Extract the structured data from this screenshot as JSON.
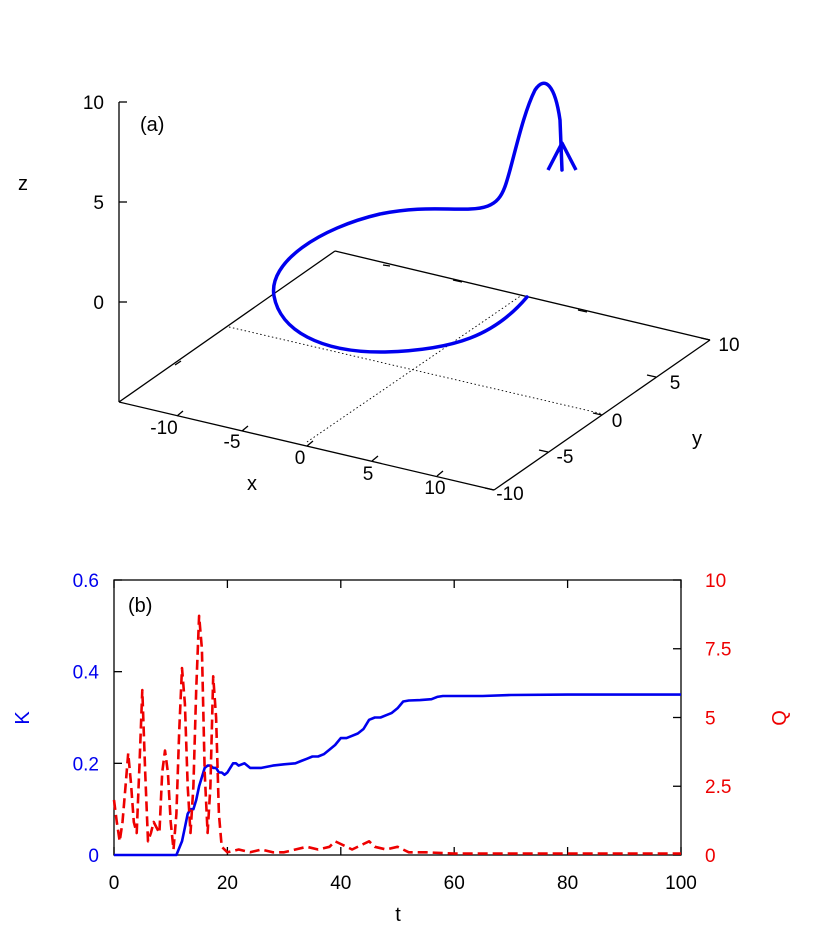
{
  "chart_data": [
    {
      "type": "line",
      "panel_label": "(a)",
      "projection": "3d",
      "xlabel": "x",
      "ylabel": "y",
      "zlabel": "z",
      "x_ticks": [
        "-10",
        "-5",
        "0",
        "5",
        "10"
      ],
      "y_ticks": [
        "-10",
        "-5",
        "0",
        "5",
        "10"
      ],
      "z_ticks": [
        "0",
        "5",
        "10"
      ],
      "xlim": [
        -13,
        13
      ],
      "ylim": [
        -10,
        10
      ],
      "zlim": [
        -5,
        10
      ],
      "grid": false,
      "trajectory_color": "#0000ee",
      "trajectory": {
        "x": [
          11.5,
          10,
          7,
          3,
          -2,
          -7,
          -10,
          -11.2,
          -10,
          -6,
          -1.5,
          2,
          4,
          6,
          7.5,
          9.5,
          10.7,
          10.2,
          10.0
        ],
        "y": [
          -10,
          -6,
          -2,
          2,
          5,
          7,
          6.5,
          3.5,
          -0.5,
          -4,
          -5.5,
          -5,
          -4,
          -3.5,
          -3.2,
          -3.2,
          -3.8,
          -5,
          -6
        ],
        "z": [
          0,
          0.2,
          0.8,
          1.8,
          3.0,
          4.2,
          4.8,
          4.6,
          4.0,
          4.0,
          4.3,
          4.6,
          5.0,
          5.4,
          6.0,
          8.0,
          9.8,
          10.8,
          8.0
        ]
      },
      "direction_arrow": "upward near the end of the trajectory"
    },
    {
      "type": "line",
      "panel_label": "(b)",
      "xlabel": "t",
      "ylabel": "K",
      "y2label": "Q",
      "xlim": [
        0,
        100
      ],
      "ylim": [
        0,
        0.6
      ],
      "y2lim": [
        0,
        10
      ],
      "x_ticks": [
        "0",
        "20",
        "40",
        "60",
        "80",
        "100"
      ],
      "y_ticks": [
        "0",
        "0.2",
        "0.4",
        "0.6"
      ],
      "y2_ticks": [
        "0",
        "2.5",
        "5",
        "7.5",
        "10"
      ],
      "grid": false,
      "series": [
        {
          "axis": "left",
          "color": "#0000ee",
          "style": "solid",
          "x": [
            0,
            5,
            10,
            11,
            12,
            12.5,
            13,
            13.5,
            14,
            14.5,
            15,
            15.5,
            16,
            16.5,
            17,
            17.5,
            18,
            18.5,
            19,
            19.5,
            20,
            20.5,
            21,
            21.5,
            22,
            23,
            24,
            25,
            26,
            28,
            30,
            32,
            33,
            34,
            35,
            36,
            37,
            38,
            39,
            40,
            41,
            42,
            43,
            44,
            45,
            46,
            47,
            48,
            49,
            50,
            51,
            52,
            54,
            56,
            57,
            58,
            60,
            65,
            70,
            80,
            90,
            100
          ],
          "y": [
            0,
            0,
            0,
            0,
            0.03,
            0.06,
            0.09,
            0.1,
            0.1,
            0.12,
            0.15,
            0.17,
            0.19,
            0.195,
            0.195,
            0.19,
            0.19,
            0.18,
            0.18,
            0.175,
            0.18,
            0.19,
            0.2,
            0.2,
            0.195,
            0.2,
            0.19,
            0.19,
            0.19,
            0.195,
            0.198,
            0.2,
            0.205,
            0.21,
            0.215,
            0.215,
            0.22,
            0.23,
            0.24,
            0.255,
            0.255,
            0.26,
            0.265,
            0.275,
            0.295,
            0.3,
            0.3,
            0.305,
            0.31,
            0.32,
            0.335,
            0.337,
            0.338,
            0.34,
            0.345,
            0.347,
            0.347,
            0.347,
            0.349,
            0.35,
            0.35,
            0.35
          ]
        },
        {
          "axis": "right",
          "color": "#ee0000",
          "style": "dashed",
          "x": [
            0,
            0.5,
            1,
            1.5,
            2,
            2.5,
            3,
            3.5,
            4,
            4.5,
            5,
            5.5,
            6,
            6.5,
            7,
            7.5,
            8,
            8.5,
            9,
            9.5,
            10,
            10.5,
            11,
            11.5,
            12,
            12.5,
            13,
            13.5,
            14,
            14.5,
            15,
            15.5,
            16,
            16.5,
            17,
            17.5,
            18,
            18.5,
            19,
            20,
            22,
            24,
            26,
            28,
            30,
            32,
            34,
            36,
            38,
            39,
            40,
            42,
            44,
            45,
            46,
            48,
            50,
            52,
            55,
            60,
            70,
            80,
            90,
            100
          ],
          "y": [
            2.0,
            1.2,
            0.5,
            1.2,
            2.4,
            3.7,
            2.6,
            1.2,
            0.8,
            3.3,
            6.0,
            3.0,
            0.5,
            0.8,
            1.2,
            1.0,
            0.8,
            3.0,
            3.8,
            3.0,
            1.2,
            0.2,
            1.5,
            4.5,
            6.8,
            5.5,
            2.5,
            0.8,
            2.5,
            6.0,
            8.7,
            7.5,
            3.0,
            0.8,
            2.5,
            6.5,
            5.0,
            1.5,
            0.3,
            0.1,
            0.2,
            0.1,
            0.2,
            0.1,
            0.1,
            0.2,
            0.3,
            0.2,
            0.3,
            0.5,
            0.4,
            0.2,
            0.4,
            0.5,
            0.3,
            0.2,
            0.3,
            0.1,
            0.1,
            0.05,
            0.05,
            0.05,
            0.05,
            0.05
          ]
        }
      ]
    }
  ]
}
